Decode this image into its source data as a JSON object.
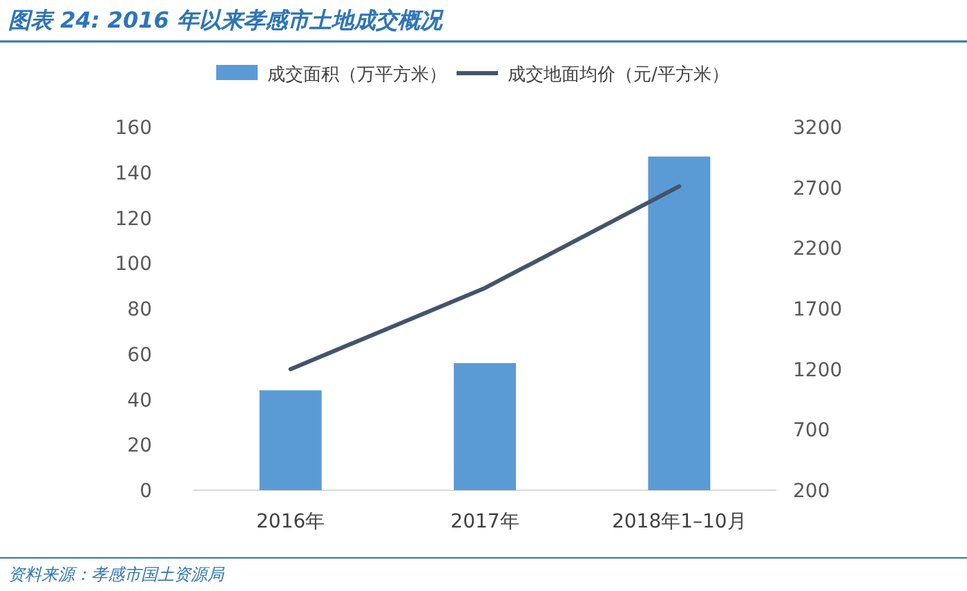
{
  "chart_data": {
    "type": "bar",
    "title": "图表 24: 2016 年以来孝感市土地成交概况",
    "categories": [
      "2016年",
      "2017年",
      "2018年1–10月"
    ],
    "series": [
      {
        "name": "成交面积（万平方米）",
        "color": "#5b9bd5",
        "values": [
          44,
          56,
          147
        ]
      },
      {
        "name": "成交地面均价（元/平方米）",
        "color": "#44546a",
        "type": "line",
        "axis": "y2",
        "values": [
          1200,
          1870,
          2710
        ]
      }
    ],
    "ylim": [
      0,
      160
    ],
    "yticks": [
      0,
      20,
      40,
      60,
      80,
      100,
      120,
      140,
      160
    ],
    "y2lim": [
      200,
      3200
    ],
    "y2ticks": [
      200,
      700,
      1200,
      1700,
      2200,
      2700,
      3200
    ],
    "legend": "top",
    "annotations": [
      "资料来源：孝感市国土资源局"
    ]
  }
}
